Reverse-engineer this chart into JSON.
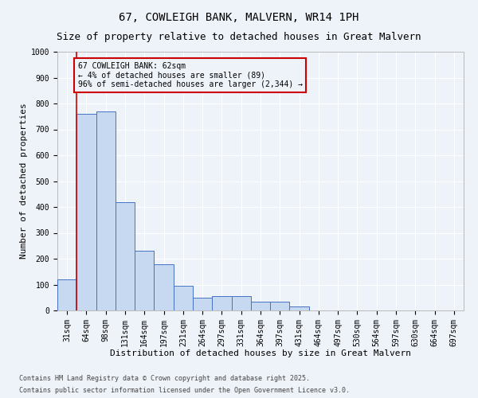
{
  "title1": "67, COWLEIGH BANK, MALVERN, WR14 1PH",
  "title2": "Size of property relative to detached houses in Great Malvern",
  "xlabel": "Distribution of detached houses by size in Great Malvern",
  "ylabel": "Number of detached properties",
  "categories": [
    "31sqm",
    "64sqm",
    "98sqm",
    "131sqm",
    "164sqm",
    "197sqm",
    "231sqm",
    "264sqm",
    "297sqm",
    "331sqm",
    "364sqm",
    "397sqm",
    "431sqm",
    "464sqm",
    "497sqm",
    "530sqm",
    "564sqm",
    "597sqm",
    "630sqm",
    "664sqm",
    "697sqm"
  ],
  "bar_heights": [
    120,
    760,
    770,
    420,
    230,
    180,
    95,
    50,
    55,
    55,
    35,
    35,
    15,
    0,
    0,
    0,
    0,
    0,
    0,
    0,
    0
  ],
  "bar_color": "#c6d9f0",
  "bar_edge_color": "#4472c4",
  "vline_color": "#cc0000",
  "annotation_text": "67 COWLEIGH BANK: 62sqm\n← 4% of detached houses are smaller (89)\n96% of semi-detached houses are larger (2,344) →",
  "box_color": "#cc0000",
  "ylim": [
    0,
    1000
  ],
  "yticks": [
    0,
    100,
    200,
    300,
    400,
    500,
    600,
    700,
    800,
    900,
    1000
  ],
  "footnote1": "Contains HM Land Registry data © Crown copyright and database right 2025.",
  "footnote2": "Contains public sector information licensed under the Open Government Licence v3.0.",
  "bg_color": "#eef2f9",
  "grid_color": "#ffffff",
  "title1_fontsize": 10,
  "title2_fontsize": 9,
  "tick_fontsize": 7,
  "label_fontsize": 8,
  "footnote_fontsize": 6
}
